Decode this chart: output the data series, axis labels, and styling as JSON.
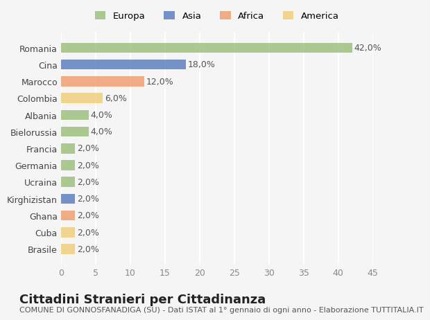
{
  "categories": [
    "Brasile",
    "Cuba",
    "Ghana",
    "Kirghizistan",
    "Ucraina",
    "Germania",
    "Francia",
    "Bielorussia",
    "Albania",
    "Colombia",
    "Marocco",
    "Cina",
    "Romania"
  ],
  "values": [
    2.0,
    2.0,
    2.0,
    2.0,
    2.0,
    2.0,
    2.0,
    4.0,
    4.0,
    6.0,
    12.0,
    18.0,
    42.0
  ],
  "colors": [
    "#f0d080",
    "#f0d080",
    "#f0a070",
    "#6080c0",
    "#a0c080",
    "#a0c080",
    "#a0c080",
    "#a0c080",
    "#a0c080",
    "#f0d080",
    "#f0a070",
    "#6080c0",
    "#a0c080"
  ],
  "bar_color_europa": "#a0c080",
  "bar_color_asia": "#6080c0",
  "bar_color_africa": "#f0a070",
  "bar_color_america": "#f0d080",
  "legend_labels": [
    "Europa",
    "Asia",
    "Africa",
    "America"
  ],
  "legend_colors": [
    "#a0c080",
    "#6080c0",
    "#f0a070",
    "#f0d080"
  ],
  "xlim": [
    0,
    45
  ],
  "xticks": [
    0,
    5,
    10,
    15,
    20,
    25,
    30,
    35,
    40,
    45
  ],
  "title": "Cittadini Stranieri per Cittadinanza",
  "subtitle": "COMUNE DI GONNOSFANADIGA (SU) - Dati ISTAT al 1° gennaio di ogni anno - Elaborazione TUTTITALIA.IT",
  "bg_color": "#f5f5f5",
  "grid_color": "#ffffff",
  "bar_alpha": 0.85,
  "label_fontsize": 9,
  "title_fontsize": 13,
  "subtitle_fontsize": 8
}
